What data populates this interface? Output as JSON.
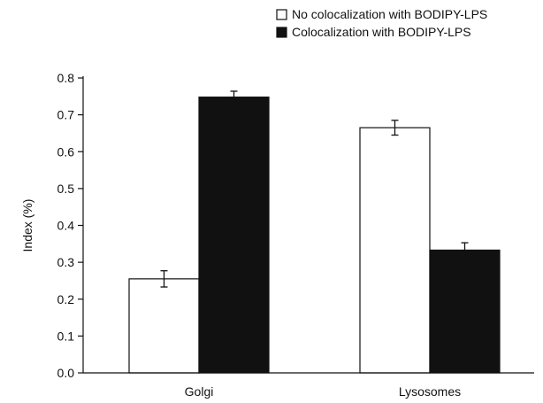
{
  "chart_data": {
    "type": "bar",
    "title": "",
    "xlabel": "",
    "ylabel": "Index (%)",
    "ylim": [
      0,
      0.8
    ],
    "yticks": [
      0.0,
      0.1,
      0.2,
      0.3,
      0.4,
      0.5,
      0.6,
      0.7,
      0.8
    ],
    "ytick_labels": [
      "0.0",
      "0.1",
      "0.2",
      "0.3",
      "0.4",
      "0.5",
      "0.6",
      "0.7",
      "0.8"
    ],
    "categories": [
      "Golgi",
      "Lysosomes"
    ],
    "series": [
      {
        "name": "No colocalization with BODIPY-LPS",
        "color": "#ffffff",
        "values": [
          0.255,
          0.665
        ],
        "errors": [
          0.022,
          0.02
        ]
      },
      {
        "name": "Colocalization with BODIPY-LPS",
        "color": "#111111",
        "values": [
          0.748,
          0.333
        ],
        "errors": [
          0.016,
          0.02
        ]
      }
    ],
    "grid": false,
    "legend_position": "top-right"
  }
}
